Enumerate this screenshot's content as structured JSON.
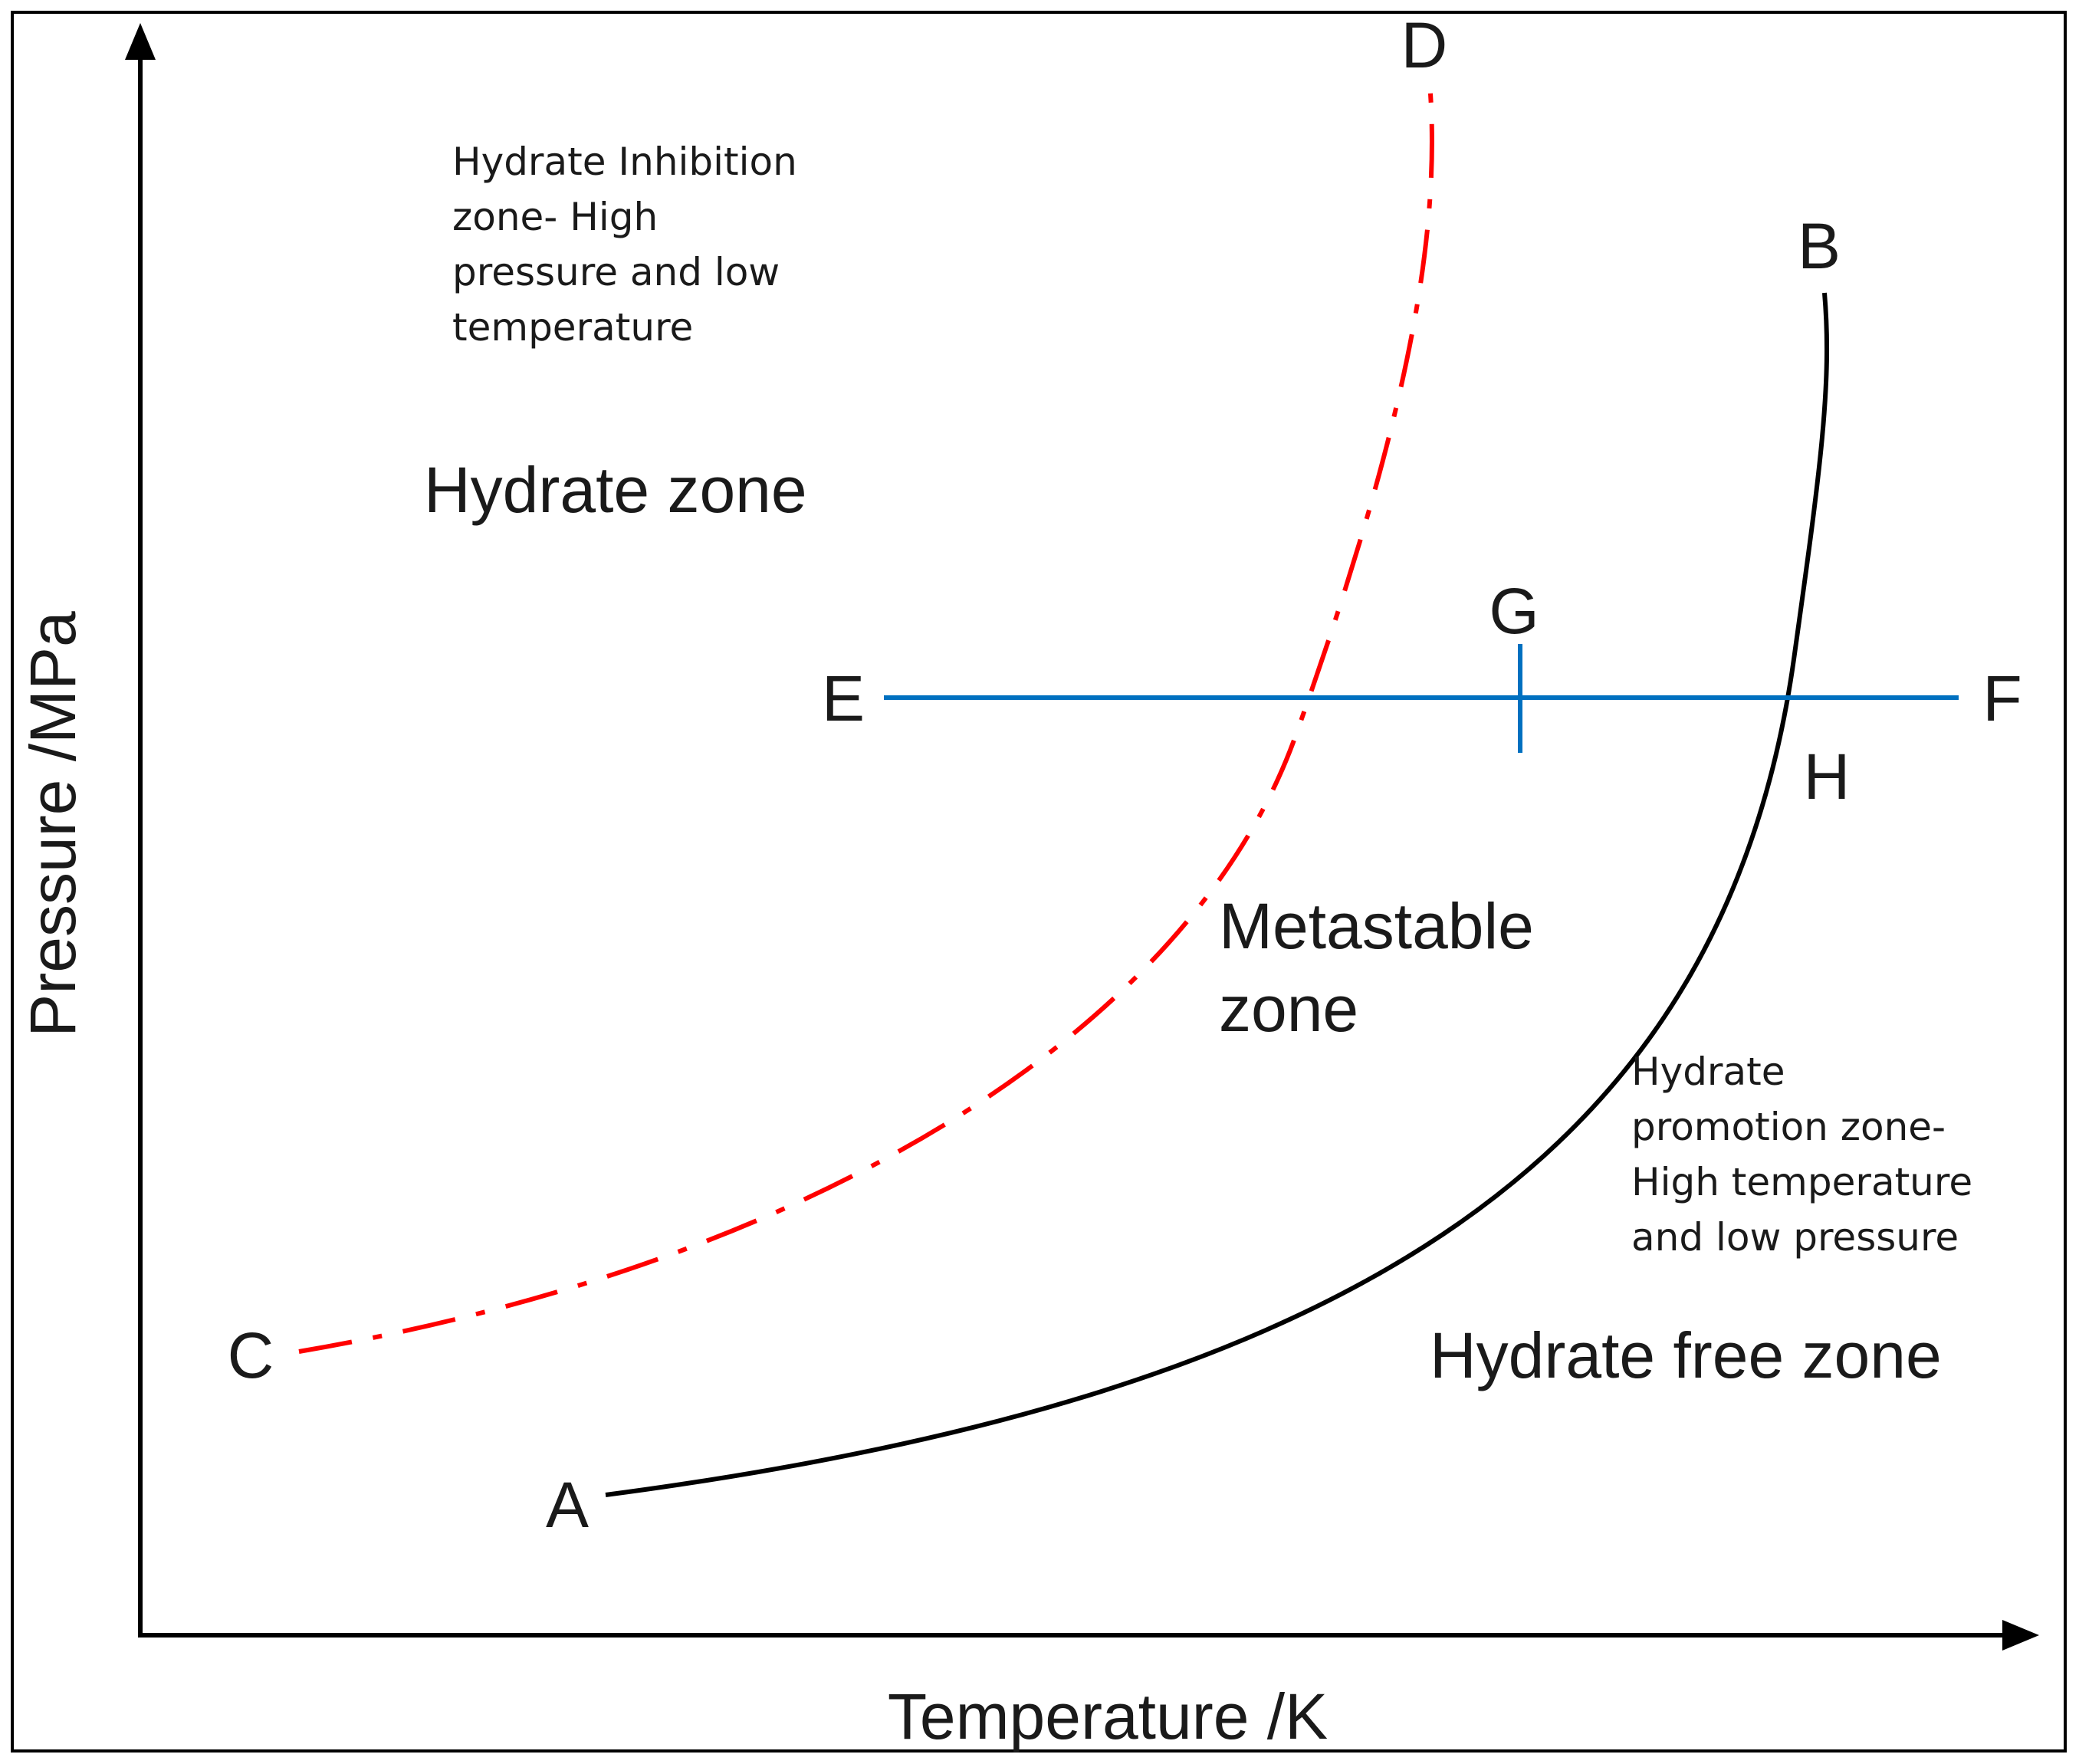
{
  "axes": {
    "x_label": "Temperature /K",
    "y_label": "Pressure /MPa"
  },
  "points": {
    "A": "A",
    "B": "B",
    "C": "C",
    "D": "D",
    "E": "E",
    "F": "F",
    "G": "G",
    "H": "H"
  },
  "zones": {
    "hydrate_zone": "Hydrate zone",
    "metastable_line1": "Metastable",
    "metastable_line2": "zone",
    "hydrate_free_zone": "Hydrate free zone"
  },
  "notes": {
    "inhibition": [
      "Hydrate Inhibition",
      "zone- High",
      "pressure and low",
      "temperature"
    ],
    "promotion": [
      "Hydrate",
      "promotion zone-",
      "High temperature",
      "and low pressure"
    ]
  },
  "colors": {
    "equilibrium_curve": "#000000",
    "inhibition_curve": "#ff0000",
    "isobar_line": "#0070c0",
    "frame": "#000000"
  }
}
